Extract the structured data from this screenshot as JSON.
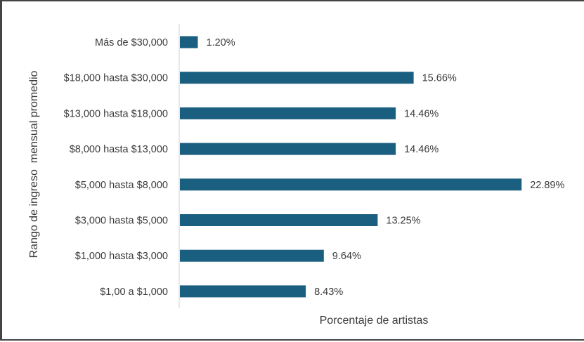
{
  "chart_data": {
    "type": "bar",
    "orientation": "horizontal",
    "categories": [
      "Más de $30,000",
      "$18,000 hasta $30,000",
      "$13,000 hasta $18,000",
      "$8,000 hasta $13,000",
      "$5,000 hasta $8,000",
      "$3,000 hasta $5,000",
      "$1,000 hasta $3,000",
      "$1,00 a $1,000"
    ],
    "values": [
      1.2,
      15.66,
      14.46,
      14.46,
      22.89,
      13.25,
      9.64,
      8.43
    ],
    "value_labels": [
      "1.20%",
      "15.66%",
      "14.46%",
      "14.46%",
      "22.89%",
      "13.25%",
      "9.64%",
      "8.43%"
    ],
    "title": "",
    "xlabel": "Porcentaje de artistas",
    "ylabel": "Rango de ingreso  mensual promedio",
    "xlim": [
      0,
      25
    ],
    "grid": false,
    "legend": "none",
    "bar_color": "#1a5e80"
  }
}
